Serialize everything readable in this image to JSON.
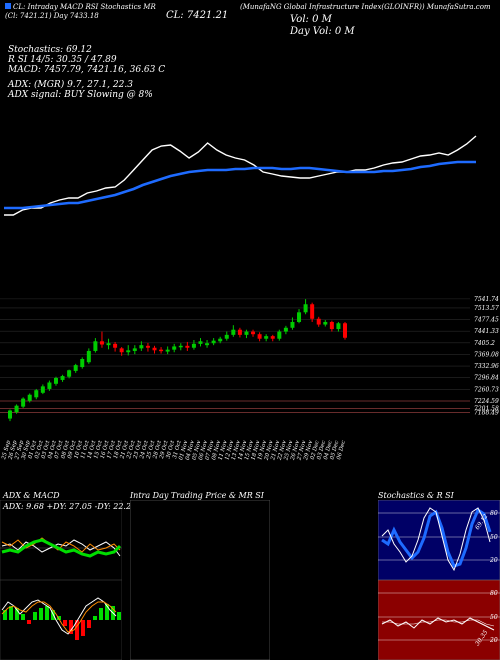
{
  "header": {
    "line1": "(Cl: 7421.21) Day  7433.18",
    "tag_left": "CL: Intraday MACD RSI Stochastics MR",
    "symbol": "SI Day Vol: 0 M",
    "close_big": "CL: 7421.21",
    "vol_big": "Vol: 0 M",
    "vol_line2": "Day Vol: 0  M",
    "title": "(MunafaNG Global Infrastructure Index(GLOINFR)) MunafaSutra.com",
    "stoch": "Stochastics: 69.12",
    "rsi": "R                    SI 14/5: 30.35 / 47.89",
    "macd": "MACD: 7457.79, 7421.16, 36.63 C",
    "adx": "ADX:                                    (MGR) 9.7, 27.1, 22.3",
    "adx_signal": "ADX  signal:                                        BUY Slowing @ 8%"
  },
  "colors": {
    "up": "#00cc00",
    "down": "#ff0000",
    "ma": "#1e6bff",
    "price": "#ffffff"
  },
  "chart_data": [
    {
      "type": "line",
      "name": "price-with-ma",
      "x": [
        "25 Sep",
        "26 Sep",
        "27 Sep",
        "30 Sep",
        "01 Oct",
        "02 Oct",
        "03 Oct",
        "04 Oct",
        "07 Oct",
        "08 Oct",
        "09 Oct",
        "10 Oct",
        "11 Oct",
        "14 Oct",
        "15 Oct",
        "16 Oct",
        "17 Oct",
        "18 Oct",
        "21 Oct",
        "22 Oct",
        "23 Oct",
        "24 Oct",
        "25 Oct",
        "28 Oct",
        "29 Oct",
        "30 Oct",
        "31 Oct",
        "01 Nov",
        "04 Nov",
        "05 Nov",
        "06 Nov",
        "07 Nov",
        "08 Nov",
        "11 Nov",
        "12 Nov",
        "13 Nov",
        "14 Nov",
        "15 Nov",
        "18 Nov",
        "19 Nov",
        "20 Nov",
        "21 Nov",
        "22 Nov",
        "25 Nov",
        "26 Nov",
        "27 Nov",
        "29 Nov",
        "02 Dec",
        "03 Dec",
        "04 Dec",
        "05 Dec",
        "06 Dec"
      ],
      "series": [
        {
          "values": [
            215,
            215,
            210,
            208,
            208,
            203,
            200,
            198,
            198,
            193,
            191,
            188,
            187,
            180,
            170,
            160,
            150,
            146,
            145,
            151,
            158,
            152,
            143,
            150,
            155,
            158,
            160,
            165,
            172,
            174,
            176,
            177,
            178,
            178,
            176,
            174,
            172,
            172,
            170,
            170,
            168,
            165,
            163,
            162,
            159,
            156,
            155,
            153,
            155,
            150,
            144,
            136
          ]
        },
        {
          "values": [
            208,
            208,
            208,
            207,
            206,
            205,
            204,
            203,
            203,
            201,
            199,
            197,
            195,
            192,
            189,
            185,
            182,
            179,
            176,
            174,
            172,
            171,
            170,
            170,
            170,
            169,
            169,
            168,
            168,
            168,
            169,
            169,
            168,
            168,
            169,
            170,
            171,
            172,
            172,
            172,
            172,
            171,
            171,
            170,
            169,
            167,
            166,
            164,
            163,
            162,
            162,
            162
          ]
        }
      ]
    },
    {
      "type": "candlestick",
      "name": "daily-candles",
      "yticks": [
        "7541.74",
        "7513.57",
        "7477.45",
        "7441.33",
        "7405.2",
        "7369.08",
        "7332.96",
        "7296.84",
        "7260.73",
        "7224.59",
        "7201.58",
        "7188.49"
      ],
      "candles": [
        [
          7170,
          7195,
          7162,
          7198,
          "u"
        ],
        [
          7190,
          7210,
          7185,
          7214,
          "u"
        ],
        [
          7207,
          7232,
          7203,
          7236,
          "u"
        ],
        [
          7225,
          7244,
          7220,
          7248,
          "u"
        ],
        [
          7236,
          7258,
          7230,
          7262,
          "u"
        ],
        [
          7250,
          7270,
          7246,
          7276,
          "u"
        ],
        [
          7262,
          7282,
          7256,
          7288,
          "u"
        ],
        [
          7278,
          7296,
          7272,
          7300,
          "u"
        ],
        [
          7290,
          7302,
          7284,
          7306,
          "u"
        ],
        [
          7300,
          7320,
          7295,
          7322,
          "u"
        ],
        [
          7318,
          7336,
          7312,
          7340,
          "u"
        ],
        [
          7330,
          7355,
          7325,
          7360,
          "u"
        ],
        [
          7345,
          7380,
          7340,
          7388,
          "u"
        ],
        [
          7380,
          7410,
          7375,
          7420,
          "u"
        ],
        [
          7410,
          7400,
          7390,
          7440,
          "d"
        ],
        [
          7398,
          7404,
          7385,
          7418,
          "u"
        ],
        [
          7402,
          7390,
          7378,
          7408,
          "d"
        ],
        [
          7388,
          7376,
          7365,
          7392,
          "d"
        ],
        [
          7376,
          7382,
          7366,
          7398,
          "u"
        ],
        [
          7380,
          7388,
          7370,
          7398,
          "u"
        ],
        [
          7388,
          7398,
          7380,
          7410,
          "u"
        ],
        [
          7396,
          7390,
          7378,
          7405,
          "d"
        ],
        [
          7390,
          7382,
          7372,
          7396,
          "d"
        ],
        [
          7384,
          7380,
          7372,
          7392,
          "d"
        ],
        [
          7378,
          7384,
          7370,
          7394,
          "u"
        ],
        [
          7384,
          7394,
          7376,
          7402,
          "u"
        ],
        [
          7392,
          7396,
          7382,
          7404,
          "u"
        ],
        [
          7396,
          7390,
          7380,
          7408,
          "d"
        ],
        [
          7390,
          7402,
          7384,
          7414,
          "u"
        ],
        [
          7402,
          7410,
          7394,
          7420,
          "u"
        ],
        [
          7398,
          7404,
          7390,
          7414,
          "u"
        ],
        [
          7404,
          7412,
          7398,
          7420,
          "u"
        ],
        [
          7410,
          7418,
          7404,
          7424,
          "u"
        ],
        [
          7418,
          7430,
          7412,
          7440,
          "u"
        ],
        [
          7430,
          7446,
          7424,
          7460,
          "u"
        ],
        [
          7446,
          7430,
          7422,
          7452,
          "d"
        ],
        [
          7430,
          7440,
          7420,
          7446,
          "u"
        ],
        [
          7440,
          7432,
          7424,
          7446,
          "d"
        ],
        [
          7432,
          7418,
          7410,
          7438,
          "d"
        ],
        [
          7418,
          7426,
          7410,
          7432,
          "u"
        ],
        [
          7426,
          7418,
          7410,
          7430,
          "d"
        ],
        [
          7418,
          7440,
          7412,
          7446,
          "u"
        ],
        [
          7440,
          7452,
          7432,
          7458,
          "u"
        ],
        [
          7452,
          7470,
          7446,
          7484,
          "u"
        ],
        [
          7470,
          7500,
          7466,
          7510,
          "u"
        ],
        [
          7500,
          7525,
          7494,
          7541,
          "u"
        ],
        [
          7525,
          7480,
          7470,
          7530,
          "d"
        ],
        [
          7480,
          7462,
          7455,
          7486,
          "d"
        ],
        [
          7462,
          7470,
          7456,
          7476,
          "u"
        ],
        [
          7470,
          7448,
          7440,
          7474,
          "d"
        ],
        [
          7448,
          7466,
          7440,
          7470,
          "u"
        ],
        [
          7466,
          7421,
          7415,
          7470,
          "d"
        ]
      ],
      "xlabels": [
        "25 Sep",
        "26 Sep",
        "27 Sep",
        "30 Sep",
        "01 Oct",
        "02 Oct",
        "03 Oct",
        "04 Oct",
        "07 Oct",
        "08 Oct",
        "09 Oct",
        "10 Oct",
        "11 Oct",
        "14 Oct",
        "15 Oct",
        "16 Oct",
        "17 Oct",
        "18 Oct",
        "21 Oct",
        "22 Oct",
        "23 Oct",
        "24 Oct",
        "25 Oct",
        "28 Oct",
        "29 Oct",
        "30 Oct",
        "31 Oct",
        "01 Nov",
        "04 Nov",
        "05 Nov",
        "06 Nov",
        "07 Nov",
        "08 Nov",
        "11 Nov",
        "12 Nov",
        "13 Nov",
        "14 Nov",
        "15 Nov",
        "18 Nov",
        "19 Nov",
        "20 Nov",
        "21 Nov",
        "22 Nov",
        "25 Nov",
        "26 Nov",
        "27 Nov",
        "29 Nov",
        "02 Dec",
        "03 Dec",
        "04 Dec",
        "05 Dec",
        "06 Dec"
      ]
    }
  ],
  "panels": {
    "adx_title": "ADX  & MACD",
    "adx_values": "ADX: 9.68  +DY: 27.05 -DY: 22.25",
    "intraday_title": "Intra  Day Trading Price  & MR                                SI",
    "stoch_title": "Stochastics & R                       SI",
    "stoch_labels": [
      "80",
      "50",
      "20"
    ],
    "stoch_value": "69.12",
    "rsi_labels": [
      "80",
      "50",
      "20"
    ],
    "rsi_value": "30.35"
  }
}
